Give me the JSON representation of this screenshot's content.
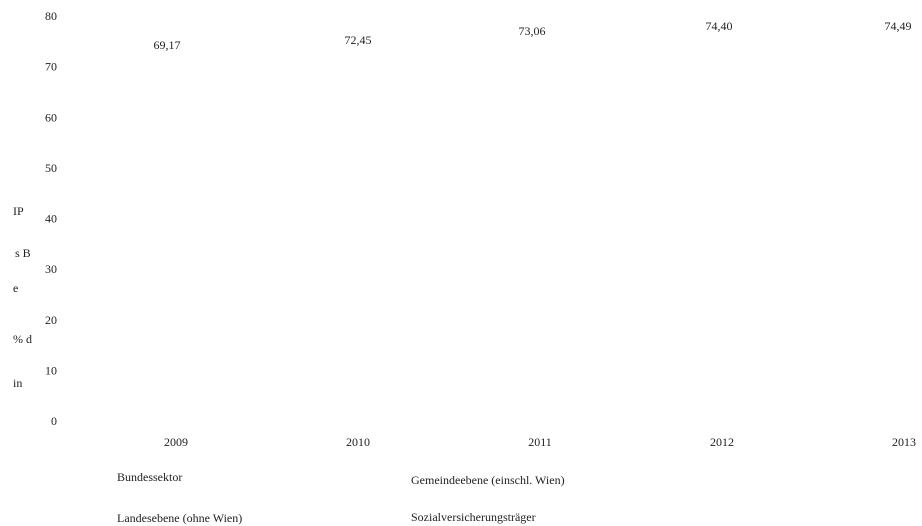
{
  "chart_data": {
    "type": "bar",
    "categories": [
      "2009",
      "2010",
      "2011",
      "2012",
      "2013"
    ],
    "series": [
      {
        "name": "Bundessektor",
        "values": [
          null,
          null,
          null,
          null,
          null
        ]
      },
      {
        "name": "Landesebene (ohne Wien)",
        "values": [
          null,
          null,
          null,
          null,
          null
        ]
      },
      {
        "name": "Gemeindeebene (einschl. Wien)",
        "values": [
          null,
          null,
          null,
          null,
          null
        ]
      },
      {
        "name": "Sozialversicherungsträger",
        "values": [
          null,
          null,
          null,
          null,
          null
        ]
      }
    ],
    "totals": [
      69.17,
      72.45,
      73.06,
      74.4,
      74.49
    ],
    "total_labels": [
      "69,17",
      "72,45",
      "73,06",
      "74,40",
      "74,49"
    ],
    "ylabel_lines": [
      "IP",
      "s B",
      "e",
      "% d",
      "in"
    ],
    "ylim": [
      0,
      80
    ],
    "yticks": [
      "0",
      "10",
      "20",
      "30",
      "40",
      "50",
      "60",
      "70",
      "80"
    ],
    "stacked": true,
    "grid": false,
    "legend_position": "bottom"
  }
}
